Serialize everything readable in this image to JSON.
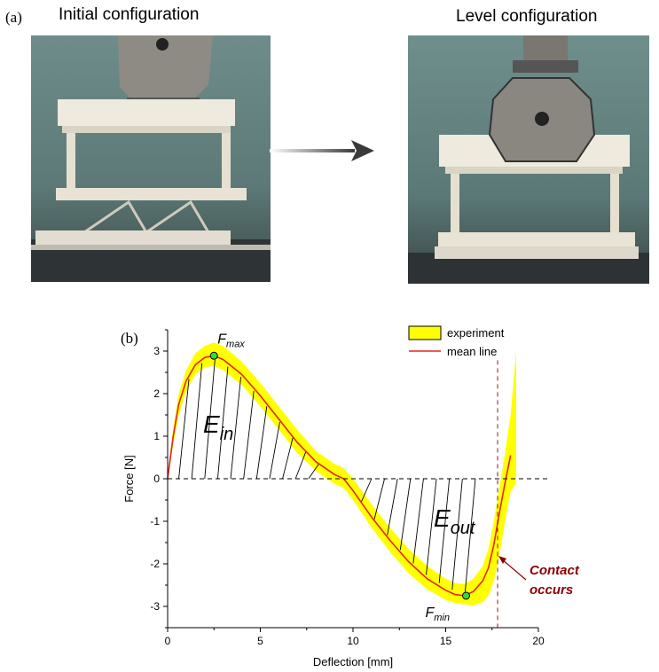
{
  "panel_a": {
    "label": "(a)",
    "left_title": "Initial configuration",
    "right_title": "Level configuration"
  },
  "panel_b": {
    "label": "(b)"
  },
  "colors": {
    "band": "#ffff00",
    "mean_line": "#e3261b",
    "contact_text": "#8b0000",
    "marker": "#33dd33"
  },
  "chart_data": {
    "type": "line",
    "xlabel": "Deflection [mm]",
    "ylabel": "Force [N]",
    "xlim": [
      0,
      20
    ],
    "ylim": [
      -3.5,
      3.5
    ],
    "x_ticks": [
      0,
      5,
      10,
      15,
      20
    ],
    "y_ticks": [
      3,
      2,
      1,
      0,
      -1,
      -2,
      -3
    ],
    "legend": [
      "experiment",
      "mean line"
    ],
    "legend_position": "top-right",
    "series": [
      {
        "name": "mean line",
        "x": [
          0,
          0.3,
          0.6,
          1.0,
          1.5,
          2.0,
          2.5,
          3.0,
          4.0,
          5.0,
          6.0,
          7.0,
          8.0,
          9.0,
          9.5,
          10.0,
          11.0,
          12.0,
          13.0,
          14.0,
          15.0,
          15.5,
          16.0,
          16.5,
          17.0,
          17.3,
          17.6,
          17.9,
          18.2,
          18.5
        ],
        "y": [
          0,
          1.0,
          1.75,
          2.3,
          2.68,
          2.85,
          2.89,
          2.8,
          2.45,
          1.95,
          1.4,
          0.85,
          0.4,
          0.1,
          0.0,
          -0.28,
          -0.9,
          -1.45,
          -1.95,
          -2.35,
          -2.62,
          -2.72,
          -2.75,
          -2.65,
          -2.4,
          -2.1,
          -1.55,
          -0.8,
          -0.1,
          0.55
        ]
      },
      {
        "name": "experiment",
        "x": [
          0,
          0.3,
          0.6,
          1.0,
          1.5,
          2.0,
          2.5,
          3.0,
          4.0,
          5.0,
          6.0,
          7.0,
          8.0,
          9.0,
          9.5,
          10.0,
          11.0,
          12.0,
          13.0,
          14.0,
          15.0,
          15.5,
          16.0,
          16.5,
          17.0,
          17.3,
          17.6,
          17.9,
          18.2,
          18.5,
          18.8
        ],
        "y_upper": [
          0.1,
          1.2,
          2.0,
          2.55,
          2.95,
          3.12,
          3.2,
          3.12,
          2.75,
          2.25,
          1.7,
          1.15,
          0.65,
          0.35,
          0.25,
          0.0,
          -0.6,
          -1.15,
          -1.65,
          -2.05,
          -2.35,
          -2.45,
          -2.48,
          -2.35,
          -2.05,
          -1.65,
          -1.0,
          -0.2,
          0.6,
          1.5,
          3.0
        ],
        "y_lower": [
          0,
          0.8,
          1.5,
          2.05,
          2.45,
          2.62,
          2.65,
          2.55,
          2.2,
          1.7,
          1.15,
          0.6,
          0.18,
          -0.12,
          -0.22,
          -0.5,
          -1.15,
          -1.72,
          -2.22,
          -2.6,
          -2.85,
          -2.92,
          -2.95,
          -2.98,
          -2.9,
          -2.75,
          -2.4,
          -1.8,
          -1.0,
          -0.3,
          -0.1
        ]
      }
    ],
    "points": [
      {
        "label": "F",
        "sub": "max",
        "x": 2.5,
        "y": 2.89
      },
      {
        "label": "F",
        "sub": "min",
        "x": 16.1,
        "y": -2.75
      }
    ],
    "annotations": {
      "e_in": {
        "label": "E",
        "sub": "in"
      },
      "e_out": {
        "label": "E",
        "sub": "out"
      },
      "contact_line1": "Contact",
      "contact_line2": "occurs",
      "contact_x": 17.8
    },
    "grid": false
  }
}
